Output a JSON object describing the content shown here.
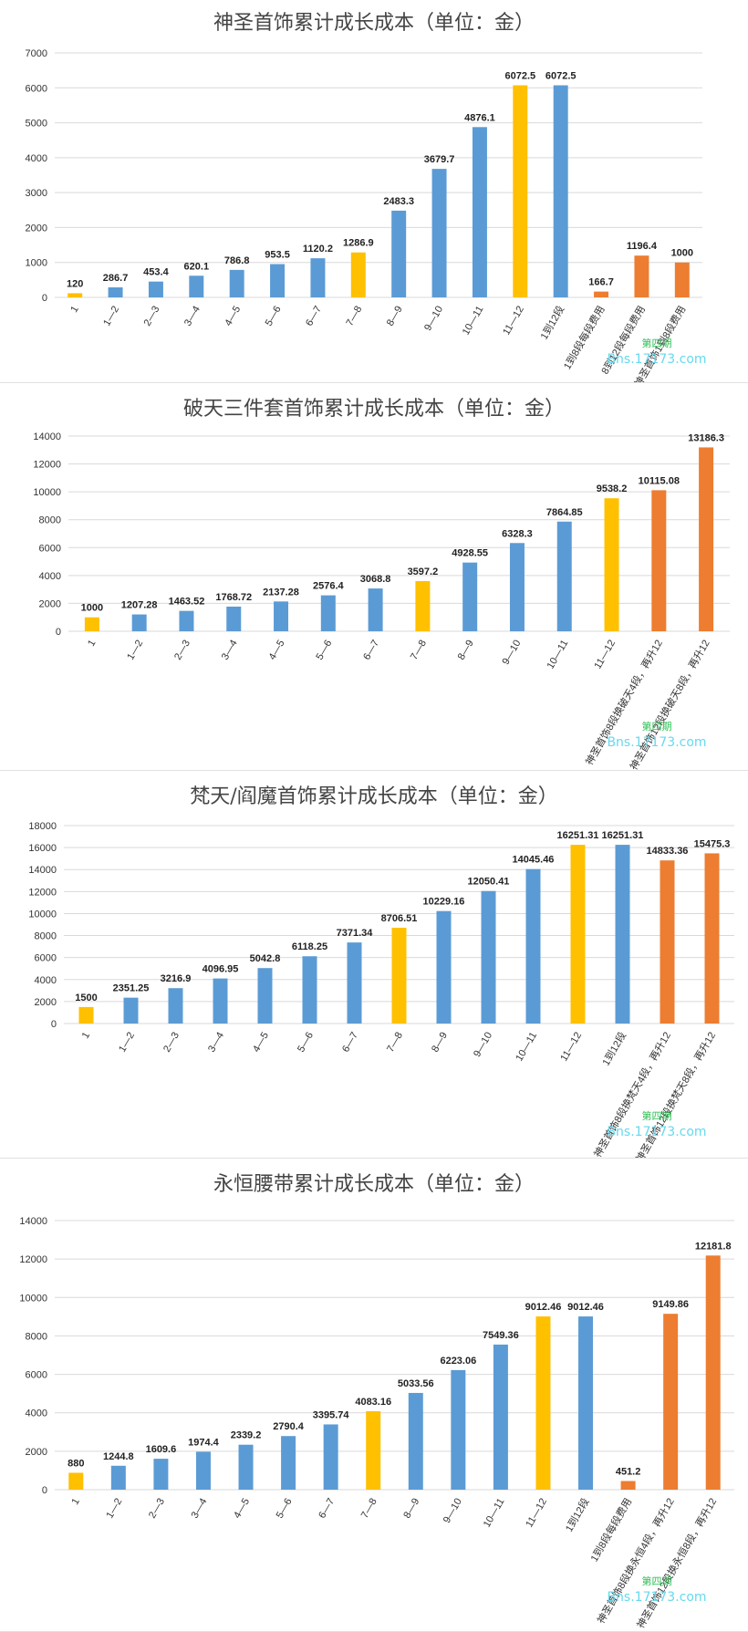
{
  "colors": {
    "blue": "#5b9bd5",
    "yellow": "#ffc000",
    "orange": "#ed7d31",
    "grid": "#d9d9d9"
  },
  "watermark": {
    "line1": "第四期",
    "line2": "Bns.17173.com"
  },
  "chart_data": [
    {
      "type": "bar",
      "title": "神圣首饰累计成长成本（单位：金）",
      "ylim": [
        0,
        7000
      ],
      "yticks": [
        0,
        1000,
        2000,
        3000,
        4000,
        5000,
        6000,
        7000
      ],
      "grid": true,
      "categories": [
        "1",
        "1—2",
        "2—3",
        "3—4",
        "4—5",
        "5—6",
        "6—7",
        "7—8",
        "8—9",
        "9—10",
        "10—11",
        "11—12",
        "1到12段",
        "1到8段每段费用",
        "8到12段每段费用",
        "神圣首饰1到8段费用"
      ],
      "values": [
        120,
        286.7,
        453.4,
        620.1,
        786.8,
        953.5,
        1120.2,
        1286.9,
        2483.3,
        3679.7,
        4876.1,
        6072.5,
        6072.5,
        166.7,
        1196.4,
        1000
      ],
      "labels": [
        "120",
        "286.7",
        "453.4",
        "620.1",
        "786.8",
        "953.5",
        "1120.2",
        "1286.9",
        "2483.3",
        "3679.7",
        "4876.1",
        "6072.5",
        "6072.5",
        "166.7",
        "1196.4",
        "1000"
      ],
      "colors": [
        "yellow",
        "blue",
        "blue",
        "blue",
        "blue",
        "blue",
        "blue",
        "yellow",
        "blue",
        "blue",
        "blue",
        "yellow",
        "blue",
        "orange",
        "orange",
        "orange"
      ]
    },
    {
      "type": "bar",
      "title": "破天三件套首饰累计成长成本（单位：金）",
      "ylim": [
        0,
        14000
      ],
      "yticks": [
        0,
        2000,
        4000,
        6000,
        8000,
        10000,
        12000,
        14000
      ],
      "grid": true,
      "categories": [
        "1",
        "1—2",
        "2—3",
        "3—4",
        "4—5",
        "5—6",
        "6—7",
        "7—8",
        "8—9",
        "9—10",
        "10—11",
        "11—12",
        "神圣首饰8段换破天4段，再升12",
        "神圣首饰12段换破天8段，再升12"
      ],
      "values": [
        1000,
        1207.28,
        1463.52,
        1768.72,
        2137.28,
        2576.4,
        3068.8,
        3597.2,
        4928.55,
        6328.3,
        7864.85,
        9538.2,
        10115.08,
        13186.3
      ],
      "labels": [
        "1000",
        "1207.28",
        "1463.52",
        "1768.72",
        "2137.28",
        "2576.4",
        "3068.8",
        "3597.2",
        "4928.55",
        "6328.3",
        "7864.85",
        "9538.2",
        "10115.08",
        "13186.3"
      ],
      "colors": [
        "yellow",
        "blue",
        "blue",
        "blue",
        "blue",
        "blue",
        "blue",
        "yellow",
        "blue",
        "blue",
        "blue",
        "yellow",
        "orange",
        "orange"
      ]
    },
    {
      "type": "bar",
      "title": "梵天/阎魔首饰累计成长成本（单位：金）",
      "ylim": [
        0,
        18000
      ],
      "yticks": [
        0,
        2000,
        4000,
        6000,
        8000,
        10000,
        12000,
        14000,
        16000,
        18000
      ],
      "grid": true,
      "categories": [
        "1",
        "1—2",
        "2—3",
        "3—4",
        "4—5",
        "5—6",
        "6—7",
        "7—8",
        "8—9",
        "9—10",
        "10—11",
        "11—12",
        "1到12段",
        "神圣首饰8段换梵天4段，再升12",
        "神圣首饰12段换梵天8段，再升12"
      ],
      "values": [
        1500,
        2351.25,
        3216.9,
        4096.95,
        5042.8,
        6118.25,
        7371.34,
        8706.51,
        10229.16,
        12050.41,
        14045.46,
        16251.31,
        16251.31,
        14833.36,
        15475.3
      ],
      "labels": [
        "1500",
        "2351.25",
        "3216.9",
        "4096.95",
        "5042.8",
        "6118.25",
        "7371.34",
        "8706.51",
        "10229.16",
        "12050.41",
        "14045.46",
        "16251.31",
        "16251.31",
        "14833.36",
        "15475.3"
      ],
      "colors": [
        "yellow",
        "blue",
        "blue",
        "blue",
        "blue",
        "blue",
        "blue",
        "yellow",
        "blue",
        "blue",
        "blue",
        "yellow",
        "blue",
        "orange",
        "orange"
      ]
    },
    {
      "type": "bar",
      "title": "永恒腰带累计成长成本（单位：金）",
      "ylim": [
        0,
        14000
      ],
      "yticks": [
        0,
        2000,
        4000,
        6000,
        8000,
        10000,
        12000,
        14000
      ],
      "grid": true,
      "categories": [
        "1",
        "1—2",
        "2—3",
        "3—4",
        "4—5",
        "5—6",
        "6—7",
        "7—8",
        "8—9",
        "9—10",
        "10—11",
        "11—12",
        "1到12段",
        "1到8段每段费用",
        "神圣首饰8段换永恒4段，再升12",
        "神圣首饰12段换永恒8段，再升12"
      ],
      "values": [
        880,
        1244.8,
        1609.6,
        1974.4,
        2339.2,
        2790.4,
        3395.74,
        4083.16,
        5033.56,
        6223.06,
        7549.36,
        9012.46,
        9012.46,
        451.2,
        9149.86,
        12181.8
      ],
      "labels": [
        "880",
        "1244.8",
        "1609.6",
        "1974.4",
        "2339.2",
        "2790.4",
        "3395.74",
        "4083.16",
        "5033.56",
        "6223.06",
        "7549.36",
        "9012.46",
        "9012.46",
        "451.2",
        "9149.86",
        "12181.8"
      ],
      "colors": [
        "yellow",
        "blue",
        "blue",
        "blue",
        "blue",
        "blue",
        "blue",
        "yellow",
        "blue",
        "blue",
        "blue",
        "yellow",
        "blue",
        "orange",
        "orange",
        "orange"
      ]
    }
  ]
}
